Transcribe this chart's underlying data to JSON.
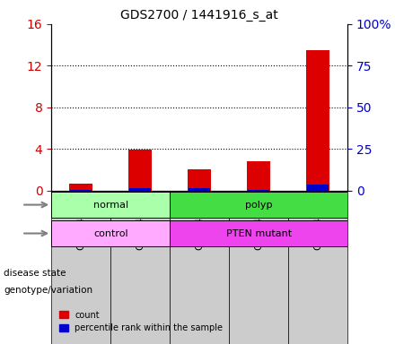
{
  "title": "GDS2700 / 1441916_s_at",
  "samples": [
    "GSM140792",
    "GSM140816",
    "GSM140813",
    "GSM140817",
    "GSM140818"
  ],
  "count_values": [
    0.7,
    3.9,
    2.0,
    2.8,
    13.5
  ],
  "percentile_values": [
    0.5,
    1.6,
    1.5,
    0.5,
    3.6
  ],
  "count_color": "#dd0000",
  "percentile_color": "#0000cc",
  "ylim_left": [
    0,
    16
  ],
  "ylim_right": [
    0,
    100
  ],
  "yticks_left": [
    0,
    4,
    8,
    12,
    16
  ],
  "yticks_right": [
    0,
    25,
    50,
    75,
    100
  ],
  "yticklabels_right": [
    "0",
    "25",
    "50",
    "75",
    "100%"
  ],
  "disease_state_groups": [
    {
      "label": "normal",
      "start": 0,
      "end": 2,
      "color": "#aaffaa"
    },
    {
      "label": "polyp",
      "start": 2,
      "end": 5,
      "color": "#44dd44"
    }
  ],
  "genotype_groups": [
    {
      "label": "control",
      "start": 0,
      "end": 2,
      "color": "#ffaaff"
    },
    {
      "label": "PTEN mutant",
      "start": 2,
      "end": 5,
      "color": "#ee44ee"
    }
  ],
  "row_labels": [
    "disease state",
    "genotype/variation"
  ],
  "legend_count": "count",
  "legend_percentile": "percentile rank within the sample",
  "bar_width": 0.4,
  "grid_color": "#000000",
  "bg_color": "#ffffff",
  "axis_label_color_left": "#cc0000",
  "axis_label_color_right": "#0000cc"
}
